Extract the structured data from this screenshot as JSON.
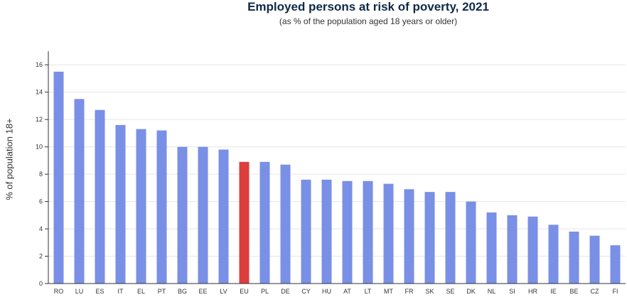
{
  "chart_data": {
    "type": "bar",
    "title": "Employed persons at risk of poverty, 2021",
    "subtitle": "(as % of the population aged 18 years or older)",
    "xlabel": "",
    "ylabel": "% of population 18+",
    "ylim": [
      0,
      17
    ],
    "yticks": [
      0,
      2,
      4,
      6,
      8,
      10,
      12,
      14,
      16
    ],
    "grid": true,
    "categories": [
      "RO",
      "LU",
      "ES",
      "IT",
      "EL",
      "PT",
      "BG",
      "EE",
      "LV",
      "EU",
      "PL",
      "DE",
      "CY",
      "HU",
      "AT",
      "LT",
      "MT",
      "FR",
      "SK",
      "SE",
      "DK",
      "NL",
      "SI",
      "HR",
      "IE",
      "BE",
      "CZ",
      "FI"
    ],
    "values": [
      15.5,
      13.5,
      12.7,
      11.6,
      11.3,
      11.2,
      10.0,
      10.0,
      9.8,
      8.9,
      8.9,
      8.7,
      7.6,
      7.6,
      7.5,
      7.5,
      7.3,
      6.9,
      6.7,
      6.7,
      6.0,
      5.2,
      5.0,
      4.9,
      4.3,
      3.8,
      3.5,
      2.8
    ],
    "colors": {
      "default": "#7a8fe6",
      "highlight": "#dc3d3d",
      "highlight_category": "EU"
    }
  }
}
